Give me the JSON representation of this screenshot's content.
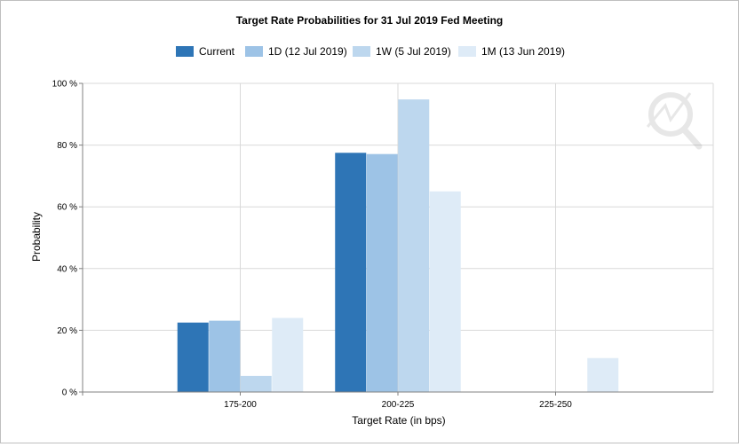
{
  "chart_data": {
    "type": "bar",
    "title": "Target Rate Probabilities for 31 Jul 2019 Fed Meeting",
    "xlabel": "Target Rate (in bps)",
    "ylabel": "Probability",
    "categories": [
      "175-200",
      "200-225",
      "225-250"
    ],
    "yticks": [
      "0 %",
      "20 %",
      "40 %",
      "60 %",
      "80 %",
      "100 %"
    ],
    "ylim": [
      0,
      100
    ],
    "grid": true,
    "legend_position": "top",
    "series": [
      {
        "name": "Current",
        "color": "#2e75b6",
        "values": [
          22.5,
          77.5,
          0
        ]
      },
      {
        "name": "1D (12 Jul 2019)",
        "color": "#9dc3e6",
        "values": [
          23.1,
          77.1,
          0
        ]
      },
      {
        "name": "1W (5 Jul 2019)",
        "color": "#bdd7ee",
        "values": [
          5.2,
          94.8,
          0
        ]
      },
      {
        "name": "1M (13 Jun 2019)",
        "color": "#deebf7",
        "values": [
          24.0,
          65.0,
          11.0
        ]
      }
    ]
  }
}
